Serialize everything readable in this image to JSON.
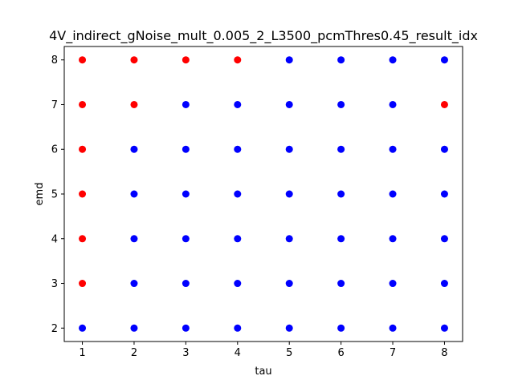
{
  "chart_data": {
    "type": "scatter",
    "title": "4V_indirect_gNoise_mult_0.005_2_L3500_pcmThres0.45_result_idx",
    "xlabel": "tau",
    "ylabel": "emd",
    "xlim": [
      0.65,
      8.35
    ],
    "ylim": [
      1.7,
      8.3
    ],
    "xticks": [
      1,
      2,
      3,
      4,
      5,
      6,
      7,
      8
    ],
    "yticks": [
      2,
      3,
      4,
      5,
      6,
      7,
      8
    ],
    "grid": false,
    "legend": "none",
    "colors": {
      "red": "#ff0000",
      "blue": "#0000ff"
    },
    "series": [
      {
        "color": "#ff0000",
        "points": [
          [
            1,
            3
          ],
          [
            1,
            4
          ],
          [
            1,
            5
          ],
          [
            1,
            6
          ],
          [
            1,
            7
          ],
          [
            1,
            8
          ],
          [
            2,
            7
          ],
          [
            2,
            8
          ],
          [
            3,
            8
          ],
          [
            4,
            8
          ],
          [
            8,
            7
          ]
        ]
      },
      {
        "color": "#0000ff",
        "points": [
          [
            1,
            2
          ],
          [
            2,
            2
          ],
          [
            2,
            3
          ],
          [
            2,
            4
          ],
          [
            2,
            5
          ],
          [
            2,
            6
          ],
          [
            3,
            2
          ],
          [
            3,
            3
          ],
          [
            3,
            4
          ],
          [
            3,
            5
          ],
          [
            3,
            6
          ],
          [
            3,
            7
          ],
          [
            4,
            2
          ],
          [
            4,
            3
          ],
          [
            4,
            4
          ],
          [
            4,
            5
          ],
          [
            4,
            6
          ],
          [
            4,
            7
          ],
          [
            5,
            2
          ],
          [
            5,
            3
          ],
          [
            5,
            4
          ],
          [
            5,
            5
          ],
          [
            5,
            6
          ],
          [
            5,
            7
          ],
          [
            5,
            8
          ],
          [
            6,
            2
          ],
          [
            6,
            3
          ],
          [
            6,
            4
          ],
          [
            6,
            5
          ],
          [
            6,
            6
          ],
          [
            6,
            7
          ],
          [
            6,
            8
          ],
          [
            7,
            2
          ],
          [
            7,
            3
          ],
          [
            7,
            4
          ],
          [
            7,
            5
          ],
          [
            7,
            6
          ],
          [
            7,
            7
          ],
          [
            7,
            8
          ],
          [
            8,
            2
          ],
          [
            8,
            3
          ],
          [
            8,
            4
          ],
          [
            8,
            5
          ],
          [
            8,
            6
          ],
          [
            8,
            8
          ]
        ]
      }
    ]
  }
}
